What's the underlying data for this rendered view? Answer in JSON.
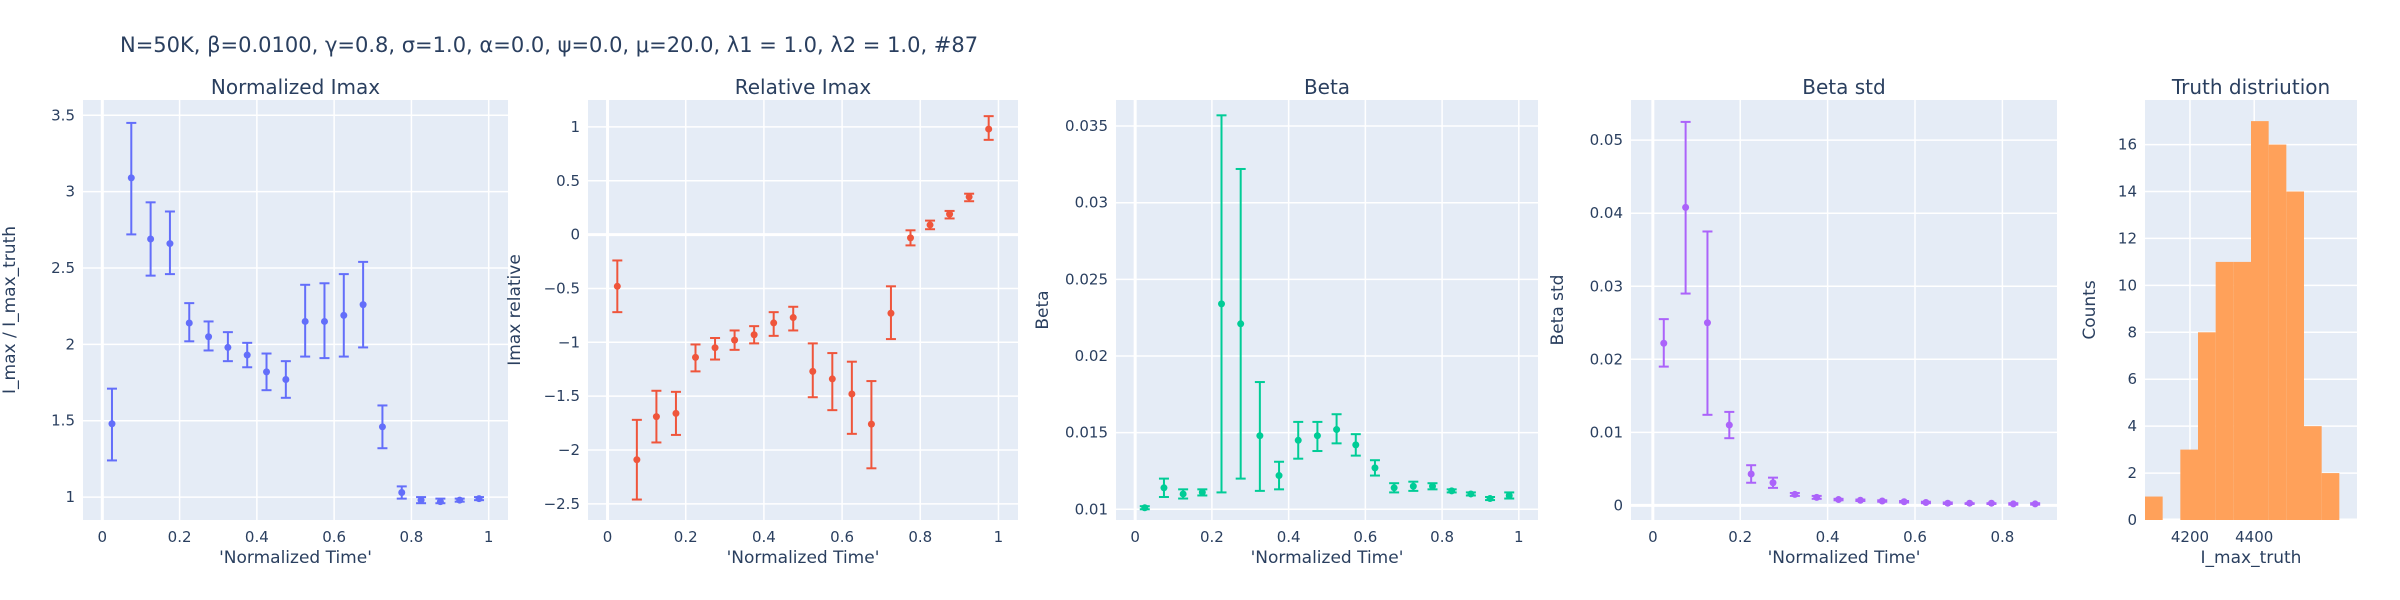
{
  "figure_title": "N=50K, β=0.0100, γ=0.8, σ=1.0,  α=0.0, ψ=0.0, μ=20.0, λ1 = 1.0, λ2 = 1.0, #87",
  "chart_data": [
    {
      "type": "scatter",
      "title": "Normalized Imax",
      "xlabel": "'Normalized Time'",
      "ylabel": "I_max / I_max_truth",
      "color": "#636efa",
      "xlim": [
        -0.05,
        1.05
      ],
      "ylim": [
        0.85,
        3.6
      ],
      "xticks": [
        0,
        0.2,
        0.4,
        0.6,
        0.8,
        1
      ],
      "xtick_labels": [
        "0",
        "0.2",
        "0.4",
        "0.6",
        "0.8",
        "1"
      ],
      "yticks": [
        1,
        1.5,
        2,
        2.5,
        3,
        3.5
      ],
      "ytick_labels": [
        "1",
        "1.5",
        "2",
        "2.5",
        "3",
        "3.5"
      ],
      "series": [
        {
          "x": [
            0.025,
            0.075,
            0.125,
            0.175,
            0.225,
            0.275,
            0.325,
            0.375,
            0.425,
            0.475,
            0.525,
            0.575,
            0.625,
            0.675,
            0.725,
            0.775,
            0.825,
            0.875,
            0.925,
            0.975
          ],
          "y": [
            1.48,
            3.09,
            2.69,
            2.66,
            2.14,
            2.05,
            1.98,
            1.93,
            1.82,
            1.77,
            2.15,
            2.15,
            2.19,
            2.26,
            1.46,
            1.03,
            0.98,
            0.97,
            0.98,
            0.99
          ],
          "err_upper": [
            1.71,
            3.45,
            2.93,
            2.87,
            2.27,
            2.15,
            2.08,
            2.01,
            1.94,
            1.89,
            2.39,
            2.4,
            2.46,
            2.54,
            1.6,
            1.07,
            1.0,
            0.99,
            0.99,
            1.0
          ],
          "err_lower": [
            1.24,
            2.72,
            2.45,
            2.46,
            2.02,
            1.96,
            1.89,
            1.85,
            1.7,
            1.65,
            1.92,
            1.91,
            1.92,
            1.98,
            1.32,
            0.99,
            0.96,
            0.96,
            0.97,
            0.98
          ]
        }
      ]
    },
    {
      "type": "scatter",
      "title": "Relative Imax",
      "xlabel": "'Normalized Time'",
      "ylabel": "Imax relative",
      "color": "#ef553b",
      "xlim": [
        -0.05,
        1.05
      ],
      "ylim": [
        -2.65,
        1.25
      ],
      "xticks": [
        0,
        0.2,
        0.4,
        0.6,
        0.8,
        1
      ],
      "xtick_labels": [
        "0",
        "0.2",
        "0.4",
        "0.6",
        "0.8",
        "1"
      ],
      "yticks": [
        -2.5,
        -2,
        -1.5,
        -1,
        -0.5,
        0,
        0.5,
        1
      ],
      "ytick_labels": [
        "−2.5",
        "−2",
        "−1.5",
        "−1",
        "−0.5",
        "0",
        "0.5",
        "1"
      ],
      "series": [
        {
          "x": [
            0.025,
            0.075,
            0.125,
            0.175,
            0.225,
            0.275,
            0.325,
            0.375,
            0.425,
            0.475,
            0.525,
            0.575,
            0.625,
            0.675,
            0.725,
            0.775,
            0.825,
            0.875,
            0.925,
            0.975
          ],
          "y": [
            -0.48,
            -2.09,
            -1.69,
            -1.66,
            -1.14,
            -1.05,
            -0.98,
            -0.93,
            -0.82,
            -0.77,
            -1.27,
            -1.34,
            -1.48,
            -1.76,
            -0.73,
            -0.03,
            0.09,
            0.19,
            0.35,
            0.98
          ],
          "err_upper": [
            -0.24,
            -1.72,
            -1.45,
            -1.46,
            -1.02,
            -0.96,
            -0.89,
            -0.85,
            -0.72,
            -0.67,
            -1.01,
            -1.1,
            -1.18,
            -1.36,
            -0.48,
            0.04,
            0.13,
            0.22,
            0.38,
            1.1
          ],
          "err_lower": [
            -0.72,
            -2.46,
            -1.93,
            -1.86,
            -1.27,
            -1.16,
            -1.07,
            -1.01,
            -0.94,
            -0.89,
            -1.51,
            -1.63,
            -1.85,
            -2.17,
            -0.97,
            -0.1,
            0.05,
            0.15,
            0.31,
            0.88
          ]
        }
      ]
    },
    {
      "type": "scatter",
      "title": "Beta",
      "xlabel": "'Normalized Time'",
      "ylabel": "Beta",
      "color": "#00cc96",
      "xlim": [
        -0.05,
        1.05
      ],
      "ylim": [
        0.0093,
        0.0367
      ],
      "xticks": [
        0,
        0.2,
        0.4,
        0.6,
        0.8,
        1
      ],
      "xtick_labels": [
        "0",
        "0.2",
        "0.4",
        "0.6",
        "0.8",
        "1"
      ],
      "yticks": [
        0.01,
        0.015,
        0.02,
        0.025,
        0.03,
        0.035
      ],
      "ytick_labels": [
        "0.01",
        "0.015",
        "0.02",
        "0.025",
        "0.03",
        "0.035"
      ],
      "series": [
        {
          "x": [
            0.025,
            0.075,
            0.125,
            0.175,
            0.225,
            0.275,
            0.325,
            0.375,
            0.425,
            0.475,
            0.525,
            0.575,
            0.625,
            0.675,
            0.725,
            0.775,
            0.825,
            0.875,
            0.925,
            0.975
          ],
          "y": [
            0.0101,
            0.0114,
            0.011,
            0.0111,
            0.0234,
            0.0221,
            0.0148,
            0.0122,
            0.0145,
            0.0148,
            0.0152,
            0.0142,
            0.0127,
            0.0114,
            0.0115,
            0.0115,
            0.0112,
            0.011,
            0.0107,
            0.0109
          ],
          "err_upper": [
            0.0102,
            0.012,
            0.0113,
            0.0113,
            0.0357,
            0.0322,
            0.0183,
            0.0131,
            0.0157,
            0.0157,
            0.0162,
            0.0149,
            0.0132,
            0.0117,
            0.0118,
            0.0117,
            0.0113,
            0.0111,
            0.0108,
            0.0111
          ],
          "err_lower": [
            0.01,
            0.0108,
            0.0107,
            0.0109,
            0.0111,
            0.012,
            0.0112,
            0.0113,
            0.0133,
            0.0138,
            0.0143,
            0.0135,
            0.0122,
            0.0111,
            0.0112,
            0.0113,
            0.0111,
            0.0109,
            0.0106,
            0.0107
          ]
        }
      ]
    },
    {
      "type": "scatter",
      "title": "Beta std",
      "xlabel": "'Normalized Time'",
      "ylabel": "Beta std",
      "color": "#ab63fa",
      "xlim": [
        -0.05,
        0.925
      ],
      "ylim": [
        -0.002,
        0.0555
      ],
      "xticks": [
        0,
        0.2,
        0.4,
        0.6,
        0.8
      ],
      "xtick_labels": [
        "0",
        "0.2",
        "0.4",
        "0.6",
        "0.8"
      ],
      "yticks": [
        0,
        0.01,
        0.02,
        0.03,
        0.04,
        0.05
      ],
      "ytick_labels": [
        "0",
        "0.01",
        "0.02",
        "0.03",
        "0.04",
        "0.05"
      ],
      "series": [
        {
          "x": [
            0.025,
            0.075,
            0.125,
            0.175,
            0.225,
            0.275,
            0.325,
            0.375,
            0.425,
            0.475,
            0.525,
            0.575,
            0.625,
            0.675,
            0.725,
            0.775,
            0.825,
            0.875
          ],
          "y": [
            0.0222,
            0.0408,
            0.025,
            0.011,
            0.0043,
            0.0031,
            0.0015,
            0.0011,
            0.0008,
            0.0007,
            0.0006,
            0.0005,
            0.0004,
            0.0003,
            0.0003,
            0.0003,
            0.0002,
            0.0002
          ],
          "err_upper": [
            0.0255,
            0.0525,
            0.0375,
            0.0128,
            0.0055,
            0.0038,
            0.0017,
            0.0013,
            0.0009,
            0.0008,
            0.0007,
            0.0006,
            0.0005,
            0.0004,
            0.0003,
            0.0003,
            0.0003,
            0.0003
          ],
          "err_lower": [
            0.019,
            0.029,
            0.0124,
            0.0092,
            0.0031,
            0.0024,
            0.0013,
            0.0009,
            0.0007,
            0.0006,
            0.0005,
            0.0004,
            0.0003,
            0.0002,
            0.0002,
            0.0002,
            0.0001,
            0.0001
          ]
        }
      ]
    },
    {
      "type": "bar",
      "title": "Truth distriution",
      "xlabel": "I_max_truth",
      "ylabel": "Counts",
      "color": "#ffa15a",
      "xlim": [
        4060,
        4720
      ],
      "ylim": [
        0,
        17.9
      ],
      "xticks": [
        4200,
        4400
      ],
      "xtick_labels": [
        "4200",
        "4400"
      ],
      "yticks": [
        0,
        2,
        4,
        6,
        8,
        10,
        12,
        14,
        16
      ],
      "ytick_labels": [
        "0",
        "2",
        "4",
        "6",
        "8",
        "10",
        "12",
        "14",
        "16"
      ],
      "bin_edges": [
        4060,
        4115,
        4170,
        4225,
        4280,
        4335,
        4390,
        4445,
        4500,
        4555,
        4610,
        4665,
        4720
      ],
      "values": [
        1,
        0,
        3,
        8,
        11,
        11,
        17,
        16,
        14,
        4,
        2,
        0
      ]
    }
  ]
}
